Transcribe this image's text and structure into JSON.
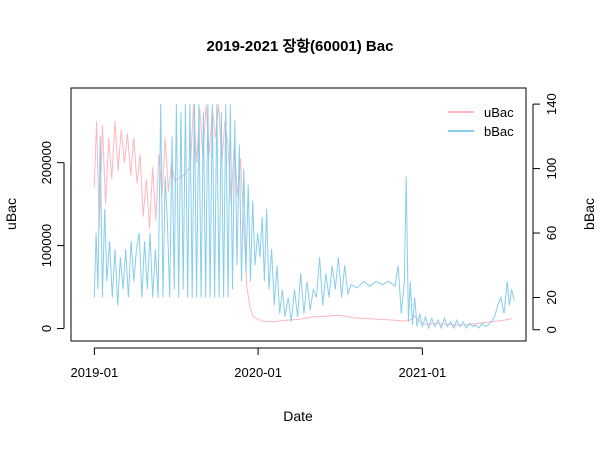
{
  "chart_data": {
    "type": "line",
    "title": "2019-2021 장항(60001) Bac",
    "xlabel": "Date",
    "ylabel_left": "uBac",
    "ylabel_right": "bBac",
    "x_ticks": [
      "2019-01",
      "2020-01",
      "2021-01"
    ],
    "x_range": [
      "2018-11-10",
      "2021-08-20"
    ],
    "y_left": {
      "ticks": [
        0,
        100000,
        200000
      ],
      "range": [
        -15000,
        290000
      ]
    },
    "y_right": {
      "ticks": [
        0,
        20,
        60,
        100,
        140
      ],
      "range": [
        -7,
        150
      ]
    },
    "legend": {
      "position": "top-right",
      "entries": [
        "uBac",
        "bBac"
      ]
    },
    "series": [
      {
        "name": "uBac",
        "axis": "left",
        "color": "#FFB6C1",
        "points": [
          [
            "2019-01-01",
            170000
          ],
          [
            "2019-01-06",
            250000
          ],
          [
            "2019-01-12",
            120000
          ],
          [
            "2019-01-19",
            245000
          ],
          [
            "2019-01-26",
            150000
          ],
          [
            "2019-02-02",
            230000
          ],
          [
            "2019-02-09",
            180000
          ],
          [
            "2019-02-16",
            250000
          ],
          [
            "2019-02-23",
            190000
          ],
          [
            "2019-03-02",
            240000
          ],
          [
            "2019-03-09",
            200000
          ],
          [
            "2019-03-16",
            235000
          ],
          [
            "2019-03-23",
            185000
          ],
          [
            "2019-03-30",
            230000
          ],
          [
            "2019-04-06",
            175000
          ],
          [
            "2019-04-13",
            210000
          ],
          [
            "2019-04-20",
            135000
          ],
          [
            "2019-04-27",
            180000
          ],
          [
            "2019-05-04",
            120000
          ],
          [
            "2019-05-11",
            195000
          ],
          [
            "2019-05-18",
            130000
          ],
          [
            "2019-05-25",
            210000
          ],
          [
            "2019-06-01",
            160000
          ],
          [
            "2019-06-08",
            230000
          ],
          [
            "2019-06-15",
            165000
          ],
          [
            "2019-06-22",
            200000
          ],
          [
            "2019-06-29",
            178000
          ],
          [
            "2019-07-06",
            180000
          ],
          [
            "2019-07-20",
            185000
          ],
          [
            "2019-08-03",
            195000
          ],
          [
            "2019-08-10",
            270000
          ],
          [
            "2019-08-17",
            200000
          ],
          [
            "2019-08-24",
            265000
          ],
          [
            "2019-08-31",
            205000
          ],
          [
            "2019-09-07",
            270000
          ],
          [
            "2019-09-14",
            210000
          ],
          [
            "2019-09-21",
            265000
          ],
          [
            "2019-09-28",
            230000
          ],
          [
            "2019-10-05",
            270000
          ],
          [
            "2019-10-12",
            200000
          ],
          [
            "2019-10-19",
            250000
          ],
          [
            "2019-10-26",
            220000
          ],
          [
            "2019-11-02",
            150000
          ],
          [
            "2019-11-09",
            225000
          ],
          [
            "2019-11-16",
            160000
          ],
          [
            "2019-11-23",
            205000
          ],
          [
            "2019-11-30",
            120000
          ],
          [
            "2019-12-07",
            50000
          ],
          [
            "2019-12-14",
            25000
          ],
          [
            "2019-12-21",
            15000
          ],
          [
            "2019-12-28",
            12000
          ],
          [
            "2020-01-11",
            9000
          ],
          [
            "2020-02-01",
            8000
          ],
          [
            "2020-03-01",
            10000
          ],
          [
            "2020-04-01",
            11000
          ],
          [
            "2020-05-01",
            14000
          ],
          [
            "2020-06-01",
            15000
          ],
          [
            "2020-07-01",
            16000
          ],
          [
            "2020-08-01",
            13000
          ],
          [
            "2020-09-01",
            12000
          ],
          [
            "2020-10-01",
            11000
          ],
          [
            "2020-11-01",
            10000
          ],
          [
            "2020-12-01",
            9000
          ],
          [
            "2020-12-15",
            15000
          ],
          [
            "2021-01-01",
            5000
          ],
          [
            "2021-02-01",
            6000
          ],
          [
            "2021-03-01",
            5000
          ],
          [
            "2021-04-01",
            4000
          ],
          [
            "2021-05-01",
            6000
          ],
          [
            "2021-06-01",
            8000
          ],
          [
            "2021-07-01",
            10000
          ],
          [
            "2021-07-20",
            12000
          ]
        ]
      },
      {
        "name": "bBac",
        "axis": "right",
        "color": "#87CEEB",
        "points": [
          [
            "2019-01-01",
            20
          ],
          [
            "2019-01-05",
            60
          ],
          [
            "2019-01-09",
            25
          ],
          [
            "2019-01-14",
            120
          ],
          [
            "2019-01-19",
            20
          ],
          [
            "2019-01-24",
            75
          ],
          [
            "2019-01-29",
            30
          ],
          [
            "2019-02-04",
            55
          ],
          [
            "2019-02-10",
            20
          ],
          [
            "2019-02-16",
            50
          ],
          [
            "2019-02-22",
            15
          ],
          [
            "2019-02-28",
            45
          ],
          [
            "2019-03-06",
            25
          ],
          [
            "2019-03-12",
            50
          ],
          [
            "2019-03-18",
            20
          ],
          [
            "2019-03-24",
            55
          ],
          [
            "2019-03-30",
            30
          ],
          [
            "2019-04-05",
            50
          ],
          [
            "2019-04-11",
            60
          ],
          [
            "2019-04-17",
            20
          ],
          [
            "2019-04-23",
            55
          ],
          [
            "2019-04-29",
            25
          ],
          [
            "2019-05-05",
            60
          ],
          [
            "2019-05-11",
            20
          ],
          [
            "2019-05-17",
            50
          ],
          [
            "2019-05-23",
            20
          ],
          [
            "2019-05-29",
            140
          ],
          [
            "2019-06-03",
            20
          ],
          [
            "2019-06-08",
            95
          ],
          [
            "2019-06-13",
            65
          ],
          [
            "2019-06-18",
            20
          ],
          [
            "2019-06-23",
            120
          ],
          [
            "2019-06-28",
            25
          ],
          [
            "2019-07-03",
            140
          ],
          [
            "2019-07-08",
            20
          ],
          [
            "2019-07-13",
            135
          ],
          [
            "2019-07-18",
            25
          ],
          [
            "2019-07-23",
            140
          ],
          [
            "2019-07-28",
            20
          ],
          [
            "2019-08-02",
            140
          ],
          [
            "2019-08-07",
            20
          ],
          [
            "2019-08-12",
            140
          ],
          [
            "2019-08-17",
            20
          ],
          [
            "2019-08-22",
            140
          ],
          [
            "2019-08-27",
            20
          ],
          [
            "2019-09-01",
            135
          ],
          [
            "2019-09-06",
            20
          ],
          [
            "2019-09-11",
            140
          ],
          [
            "2019-09-16",
            20
          ],
          [
            "2019-09-21",
            140
          ],
          [
            "2019-09-26",
            20
          ],
          [
            "2019-10-01",
            140
          ],
          [
            "2019-10-06",
            20
          ],
          [
            "2019-10-11",
            135
          ],
          [
            "2019-10-16",
            20
          ],
          [
            "2019-10-21",
            140
          ],
          [
            "2019-10-26",
            20
          ],
          [
            "2019-10-31",
            140
          ],
          [
            "2019-11-05",
            25
          ],
          [
            "2019-11-10",
            130
          ],
          [
            "2019-11-15",
            40
          ],
          [
            "2019-11-20",
            115
          ],
          [
            "2019-11-25",
            30
          ],
          [
            "2019-11-30",
            100
          ],
          [
            "2019-12-05",
            35
          ],
          [
            "2019-12-10",
            90
          ],
          [
            "2019-12-15",
            30
          ],
          [
            "2019-12-20",
            80
          ],
          [
            "2019-12-25",
            40
          ],
          [
            "2019-12-31",
            60
          ],
          [
            "2020-01-05",
            45
          ],
          [
            "2020-01-10",
            70
          ],
          [
            "2020-01-15",
            30
          ],
          [
            "2020-01-20",
            75
          ],
          [
            "2020-01-25",
            25
          ],
          [
            "2020-01-31",
            50
          ],
          [
            "2020-02-06",
            15
          ],
          [
            "2020-02-12",
            40
          ],
          [
            "2020-02-18",
            10
          ],
          [
            "2020-02-24",
            25
          ],
          [
            "2020-03-01",
            8
          ],
          [
            "2020-03-08",
            20
          ],
          [
            "2020-03-15",
            5
          ],
          [
            "2020-03-22",
            25
          ],
          [
            "2020-03-29",
            8
          ],
          [
            "2020-04-05",
            35
          ],
          [
            "2020-04-12",
            10
          ],
          [
            "2020-04-19",
            30
          ],
          [
            "2020-04-26",
            12
          ],
          [
            "2020-05-03",
            25
          ],
          [
            "2020-05-10",
            20
          ],
          [
            "2020-05-17",
            45
          ],
          [
            "2020-05-24",
            15
          ],
          [
            "2020-05-31",
            35
          ],
          [
            "2020-06-07",
            20
          ],
          [
            "2020-06-14",
            40
          ],
          [
            "2020-06-21",
            25
          ],
          [
            "2020-06-28",
            45
          ],
          [
            "2020-07-05",
            20
          ],
          [
            "2020-07-12",
            40
          ],
          [
            "2020-07-19",
            22
          ],
          [
            "2020-07-26",
            28
          ],
          [
            "2020-08-09",
            26
          ],
          [
            "2020-08-23",
            30
          ],
          [
            "2020-09-06",
            27
          ],
          [
            "2020-09-20",
            30
          ],
          [
            "2020-10-04",
            28
          ],
          [
            "2020-10-18",
            30
          ],
          [
            "2020-11-01",
            27
          ],
          [
            "2020-11-08",
            40
          ],
          [
            "2020-11-15",
            10
          ],
          [
            "2020-11-22",
            30
          ],
          [
            "2020-11-26",
            95
          ],
          [
            "2020-12-01",
            5
          ],
          [
            "2020-12-05",
            30
          ],
          [
            "2020-12-10",
            3
          ],
          [
            "2020-12-15",
            20
          ],
          [
            "2020-12-20",
            2
          ],
          [
            "2020-12-26",
            10
          ],
          [
            "2021-01-01",
            2
          ],
          [
            "2021-01-08",
            8
          ],
          [
            "2021-01-15",
            1
          ],
          [
            "2021-01-22",
            7
          ],
          [
            "2021-01-29",
            2
          ],
          [
            "2021-02-05",
            6
          ],
          [
            "2021-02-12",
            1
          ],
          [
            "2021-02-19",
            7
          ],
          [
            "2021-02-26",
            2
          ],
          [
            "2021-03-05",
            5
          ],
          [
            "2021-03-12",
            1
          ],
          [
            "2021-03-19",
            6
          ],
          [
            "2021-03-26",
            2
          ],
          [
            "2021-04-02",
            5
          ],
          [
            "2021-04-09",
            1
          ],
          [
            "2021-04-16",
            4
          ],
          [
            "2021-04-23",
            2
          ],
          [
            "2021-04-30",
            3
          ],
          [
            "2021-05-07",
            1
          ],
          [
            "2021-05-14",
            4
          ],
          [
            "2021-05-21",
            2
          ],
          [
            "2021-05-28",
            3
          ],
          [
            "2021-06-04",
            5
          ],
          [
            "2021-06-11",
            8
          ],
          [
            "2021-06-18",
            15
          ],
          [
            "2021-06-25",
            20
          ],
          [
            "2021-07-02",
            10
          ],
          [
            "2021-07-09",
            30
          ],
          [
            "2021-07-14",
            15
          ],
          [
            "2021-07-19",
            25
          ],
          [
            "2021-07-25",
            18
          ]
        ]
      }
    ]
  }
}
